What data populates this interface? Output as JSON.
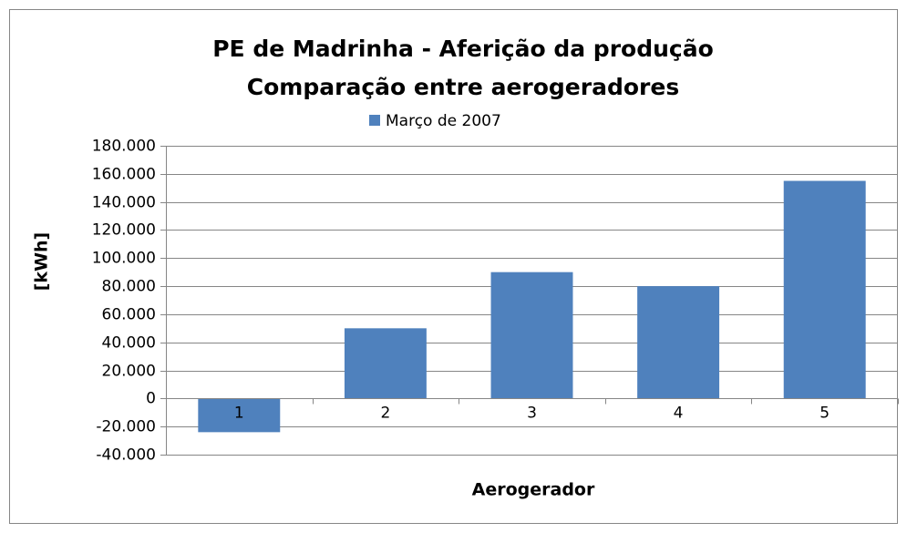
{
  "chart_data": {
    "type": "bar",
    "title": [
      "PE de Madrinha - Aferição da produção",
      "Comparação entre aerogeradores"
    ],
    "x_label": "Aerogerador",
    "y_label": "[kWh]",
    "categories": [
      "1",
      "2",
      "3",
      "4",
      "5"
    ],
    "series": [
      {
        "name": "Março de 2007",
        "color": "#4f81bd",
        "values": [
          -24000,
          50000,
          90000,
          80000,
          155000
        ]
      }
    ],
    "ylim": [
      -40000,
      180000
    ],
    "yticks": [
      {
        "value": -40000,
        "label": "-40.000"
      },
      {
        "value": -20000,
        "label": "-20.000"
      },
      0,
      {
        "value": 20000,
        "label": "20.000"
      },
      {
        "value": 40000,
        "label": "40.000"
      },
      {
        "value": 60000,
        "label": "60.000"
      },
      {
        "value": 80000,
        "label": "80.000"
      },
      {
        "value": 100000,
        "label": "100.000"
      },
      {
        "value": 120000,
        "label": "120.000"
      },
      {
        "value": 140000,
        "label": "140.000"
      },
      {
        "value": 160000,
        "label": "160.000"
      },
      {
        "value": 180000,
        "label": "180.000"
      }
    ],
    "grid": true,
    "legend": "top"
  }
}
